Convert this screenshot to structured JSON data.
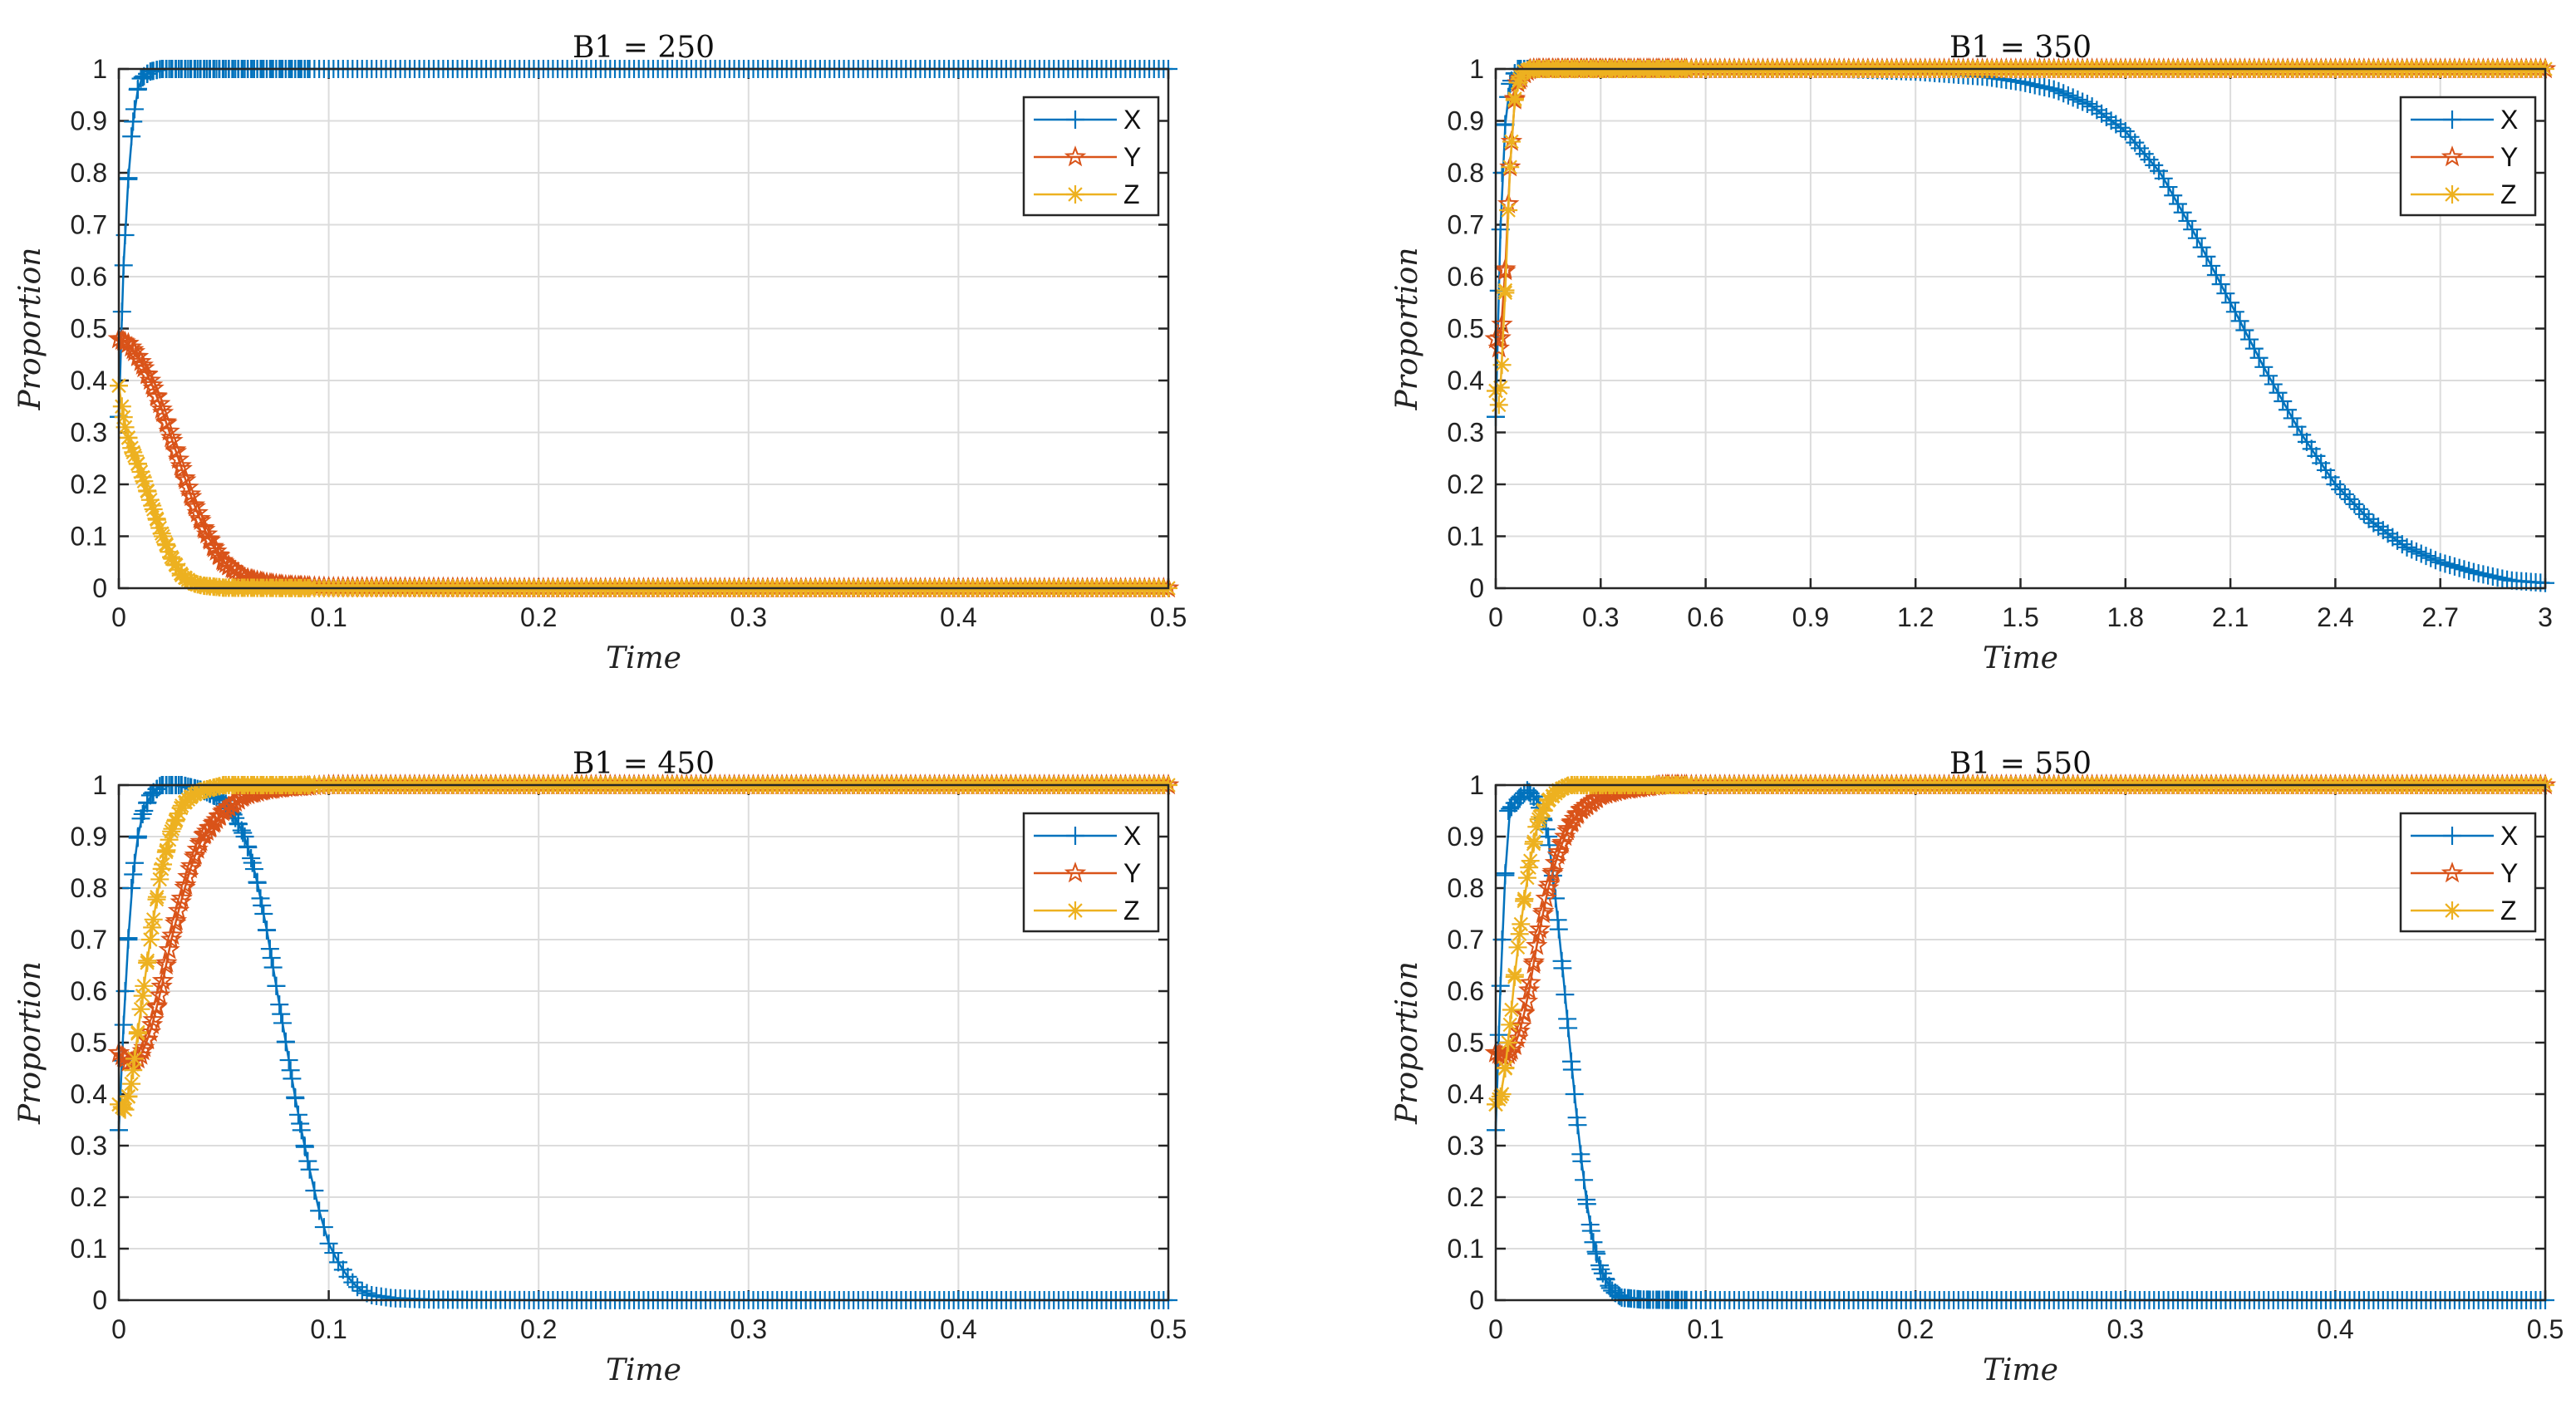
{
  "chart_data": [
    {
      "type": "line",
      "title": "B1 = 250",
      "xlabel": "Time",
      "ylabel": "Proportion",
      "xlim": [
        0,
        0.5
      ],
      "ylim": [
        0,
        1
      ],
      "xticks": [
        "0",
        "0.1",
        "0.2",
        "0.3",
        "0.4",
        "0.5"
      ],
      "yticks": [
        "0",
        "0.1",
        "0.2",
        "0.3",
        "0.4",
        "0.5",
        "0.6",
        "0.7",
        "0.8",
        "0.9",
        "1"
      ],
      "grid": true,
      "legend": "top-right",
      "series": [
        {
          "name": "X",
          "color": "#0072BD",
          "marker": "plus",
          "x": [
            0,
            0.002,
            0.004,
            0.006,
            0.008,
            0.01,
            0.015,
            0.02,
            0.05,
            0.1,
            0.2,
            0.3,
            0.4,
            0.5
          ],
          "y": [
            0.33,
            0.6,
            0.76,
            0.87,
            0.94,
            0.98,
            0.995,
            1,
            1,
            1,
            1,
            1,
            1,
            1
          ]
        },
        {
          "name": "Y",
          "color": "#D95319",
          "marker": "pentagram",
          "x": [
            0,
            0.005,
            0.01,
            0.015,
            0.02,
            0.025,
            0.03,
            0.035,
            0.04,
            0.045,
            0.05,
            0.055,
            0.06,
            0.07,
            0.08,
            0.1,
            0.2,
            0.3,
            0.4,
            0.5
          ],
          "y": [
            0.48,
            0.47,
            0.44,
            0.4,
            0.35,
            0.29,
            0.23,
            0.17,
            0.12,
            0.08,
            0.05,
            0.035,
            0.02,
            0.01,
            0.005,
            0.002,
            0,
            0,
            0,
            0
          ]
        },
        {
          "name": "Z",
          "color": "#EDB120",
          "marker": "asterisk",
          "x": [
            0,
            0.003,
            0.006,
            0.01,
            0.015,
            0.02,
            0.025,
            0.03,
            0.035,
            0.04,
            0.05,
            0.1,
            0.2,
            0.3,
            0.4,
            0.5
          ],
          "y": [
            0.39,
            0.31,
            0.27,
            0.23,
            0.17,
            0.11,
            0.06,
            0.025,
            0.01,
            0.005,
            0.001,
            0,
            0,
            0,
            0,
            0
          ]
        }
      ]
    },
    {
      "type": "line",
      "title": "B1 = 350",
      "xlabel": "Time",
      "ylabel": "Proportion",
      "xlim": [
        0,
        3
      ],
      "ylim": [
        0,
        1
      ],
      "xticks": [
        "0",
        "0.3",
        "0.6",
        "0.9",
        "1.2",
        "1.5",
        "1.8",
        "2.1",
        "2.4",
        "2.7",
        "3"
      ],
      "yticks": [
        "0",
        "0.1",
        "0.2",
        "0.3",
        "0.4",
        "0.5",
        "0.6",
        "0.7",
        "0.8",
        "0.9",
        "1"
      ],
      "grid": true,
      "legend": "top-right",
      "series": [
        {
          "name": "X",
          "color": "#0072BD",
          "marker": "plus",
          "x": [
            0,
            0.01,
            0.02,
            0.04,
            0.06,
            0.1,
            0.5,
            1.0,
            1.2,
            1.4,
            1.5,
            1.6,
            1.7,
            1.8,
            1.9,
            2.0,
            2.1,
            2.2,
            2.3,
            2.4,
            2.5,
            2.6,
            2.7,
            2.8,
            2.9,
            3.0
          ],
          "y": [
            0.33,
            0.6,
            0.85,
            0.97,
            1,
            1,
            1,
            1,
            0.995,
            0.985,
            0.975,
            0.96,
            0.93,
            0.88,
            0.8,
            0.68,
            0.55,
            0.42,
            0.3,
            0.2,
            0.13,
            0.08,
            0.05,
            0.03,
            0.015,
            0.01
          ]
        },
        {
          "name": "Y",
          "color": "#D95319",
          "marker": "pentagram",
          "x": [
            0,
            0.01,
            0.02,
            0.03,
            0.04,
            0.05,
            0.06,
            0.08,
            0.1,
            0.5,
            1.0,
            2.0,
            3.0
          ],
          "y": [
            0.48,
            0.46,
            0.52,
            0.65,
            0.8,
            0.92,
            0.97,
            0.99,
            1,
            1,
            1,
            1,
            1
          ]
        },
        {
          "name": "Z",
          "color": "#EDB120",
          "marker": "asterisk",
          "x": [
            0,
            0.01,
            0.02,
            0.03,
            0.04,
            0.05,
            0.06,
            0.08,
            0.1,
            0.5,
            1.0,
            2.0,
            3.0
          ],
          "y": [
            0.38,
            0.35,
            0.45,
            0.62,
            0.8,
            0.92,
            0.97,
            0.995,
            1,
            1,
            1,
            1,
            1
          ]
        }
      ]
    },
    {
      "type": "line",
      "title": "B1 = 450",
      "xlabel": "Time",
      "ylabel": "Proportion",
      "xlim": [
        0,
        0.5
      ],
      "ylim": [
        0,
        1
      ],
      "xticks": [
        "0",
        "0.1",
        "0.2",
        "0.3",
        "0.4",
        "0.5"
      ],
      "yticks": [
        "0",
        "0.1",
        "0.2",
        "0.3",
        "0.4",
        "0.5",
        "0.6",
        "0.7",
        "0.8",
        "0.9",
        "1"
      ],
      "grid": true,
      "legend": "top-right",
      "series": [
        {
          "name": "X",
          "color": "#0072BD",
          "marker": "plus",
          "x": [
            0,
            0.003,
            0.006,
            0.01,
            0.015,
            0.02,
            0.03,
            0.04,
            0.05,
            0.055,
            0.06,
            0.065,
            0.07,
            0.075,
            0.08,
            0.085,
            0.09,
            0.095,
            0.1,
            0.105,
            0.11,
            0.115,
            0.12,
            0.13,
            0.15,
            0.2,
            0.3,
            0.4,
            0.5
          ],
          "y": [
            0.33,
            0.6,
            0.8,
            0.93,
            0.98,
            1,
            1,
            0.99,
            0.97,
            0.94,
            0.9,
            0.83,
            0.73,
            0.61,
            0.49,
            0.37,
            0.27,
            0.18,
            0.11,
            0.07,
            0.04,
            0.02,
            0.01,
            0.004,
            0.001,
            0,
            0,
            0,
            0
          ]
        },
        {
          "name": "Y",
          "color": "#D95319",
          "marker": "pentagram",
          "x": [
            0,
            0.005,
            0.01,
            0.015,
            0.02,
            0.025,
            0.03,
            0.035,
            0.04,
            0.05,
            0.06,
            0.07,
            0.08,
            0.1,
            0.2,
            0.3,
            0.4,
            0.5
          ],
          "y": [
            0.48,
            0.46,
            0.47,
            0.52,
            0.6,
            0.7,
            0.78,
            0.85,
            0.9,
            0.95,
            0.98,
            0.99,
            0.995,
            1,
            1,
            1,
            1,
            1
          ]
        },
        {
          "name": "Z",
          "color": "#EDB120",
          "marker": "asterisk",
          "x": [
            0,
            0.003,
            0.006,
            0.01,
            0.015,
            0.02,
            0.025,
            0.03,
            0.035,
            0.04,
            0.05,
            0.06,
            0.1,
            0.2,
            0.3,
            0.4,
            0.5
          ],
          "y": [
            0.38,
            0.37,
            0.42,
            0.55,
            0.7,
            0.83,
            0.91,
            0.96,
            0.98,
            0.99,
            1,
            1,
            1,
            1,
            1,
            1,
            1
          ]
        }
      ]
    },
    {
      "type": "line",
      "title": "B1 = 550",
      "xlabel": "Time",
      "ylabel": "Proportion",
      "xlim": [
        0,
        0.5
      ],
      "ylim": [
        0,
        1
      ],
      "xticks": [
        "0",
        "0.1",
        "0.2",
        "0.3",
        "0.4",
        "0.5"
      ],
      "yticks": [
        "0",
        "0.1",
        "0.2",
        "0.3",
        "0.4",
        "0.5",
        "0.6",
        "0.7",
        "0.8",
        "0.9",
        "1"
      ],
      "grid": true,
      "legend": "top-right",
      "series": [
        {
          "name": "X",
          "color": "#0072BD",
          "marker": "plus",
          "x": [
            0,
            0.003,
            0.006,
            0.01,
            0.015,
            0.02,
            0.025,
            0.028,
            0.031,
            0.034,
            0.037,
            0.04,
            0.043,
            0.046,
            0.05,
            0.055,
            0.06,
            0.07,
            0.1,
            0.2,
            0.3,
            0.4,
            0.5
          ],
          "y": [
            0.33,
            0.7,
            0.95,
            0.97,
            0.99,
            0.97,
            0.9,
            0.8,
            0.68,
            0.55,
            0.42,
            0.3,
            0.2,
            0.12,
            0.06,
            0.02,
            0.005,
            0.001,
            0,
            0,
            0,
            0,
            0
          ]
        },
        {
          "name": "Y",
          "color": "#D95319",
          "marker": "pentagram",
          "x": [
            0,
            0.005,
            0.01,
            0.015,
            0.02,
            0.025,
            0.03,
            0.035,
            0.04,
            0.05,
            0.06,
            0.07,
            0.08,
            0.1,
            0.2,
            0.3,
            0.4,
            0.5
          ],
          "y": [
            0.48,
            0.47,
            0.5,
            0.58,
            0.7,
            0.8,
            0.87,
            0.92,
            0.95,
            0.98,
            0.99,
            0.995,
            1,
            1,
            1,
            1,
            1,
            1
          ]
        },
        {
          "name": "Z",
          "color": "#EDB120",
          "marker": "asterisk",
          "x": [
            0,
            0.003,
            0.006,
            0.01,
            0.015,
            0.02,
            0.025,
            0.03,
            0.035,
            0.04,
            0.05,
            0.1,
            0.2,
            0.3,
            0.4,
            0.5
          ],
          "y": [
            0.38,
            0.4,
            0.5,
            0.67,
            0.82,
            0.93,
            0.97,
            0.99,
            1,
            1,
            1,
            1,
            1,
            1,
            1,
            1
          ]
        }
      ]
    }
  ]
}
